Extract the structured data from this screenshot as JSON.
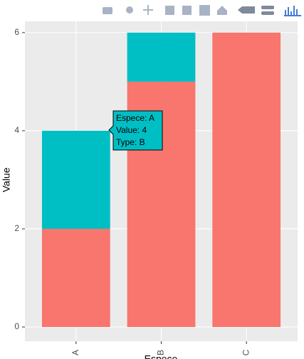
{
  "chart_data": {
    "type": "bar",
    "stacked": true,
    "xlabel": "Espece",
    "ylabel": "Value",
    "categories": [
      "A",
      "B",
      "C"
    ],
    "series": [
      {
        "color": "#F8766D",
        "values": [
          2,
          5,
          6
        ]
      },
      {
        "color": "#00BFC4",
        "values": [
          2,
          1,
          0
        ]
      }
    ],
    "ylim": [
      -0.29,
      6.23
    ],
    "yticks": [
      0,
      2,
      4,
      6
    ],
    "grid": true,
    "tooltip": {
      "lines": [
        "Espece: A",
        "Value: 4",
        "Type: B"
      ]
    }
  }
}
